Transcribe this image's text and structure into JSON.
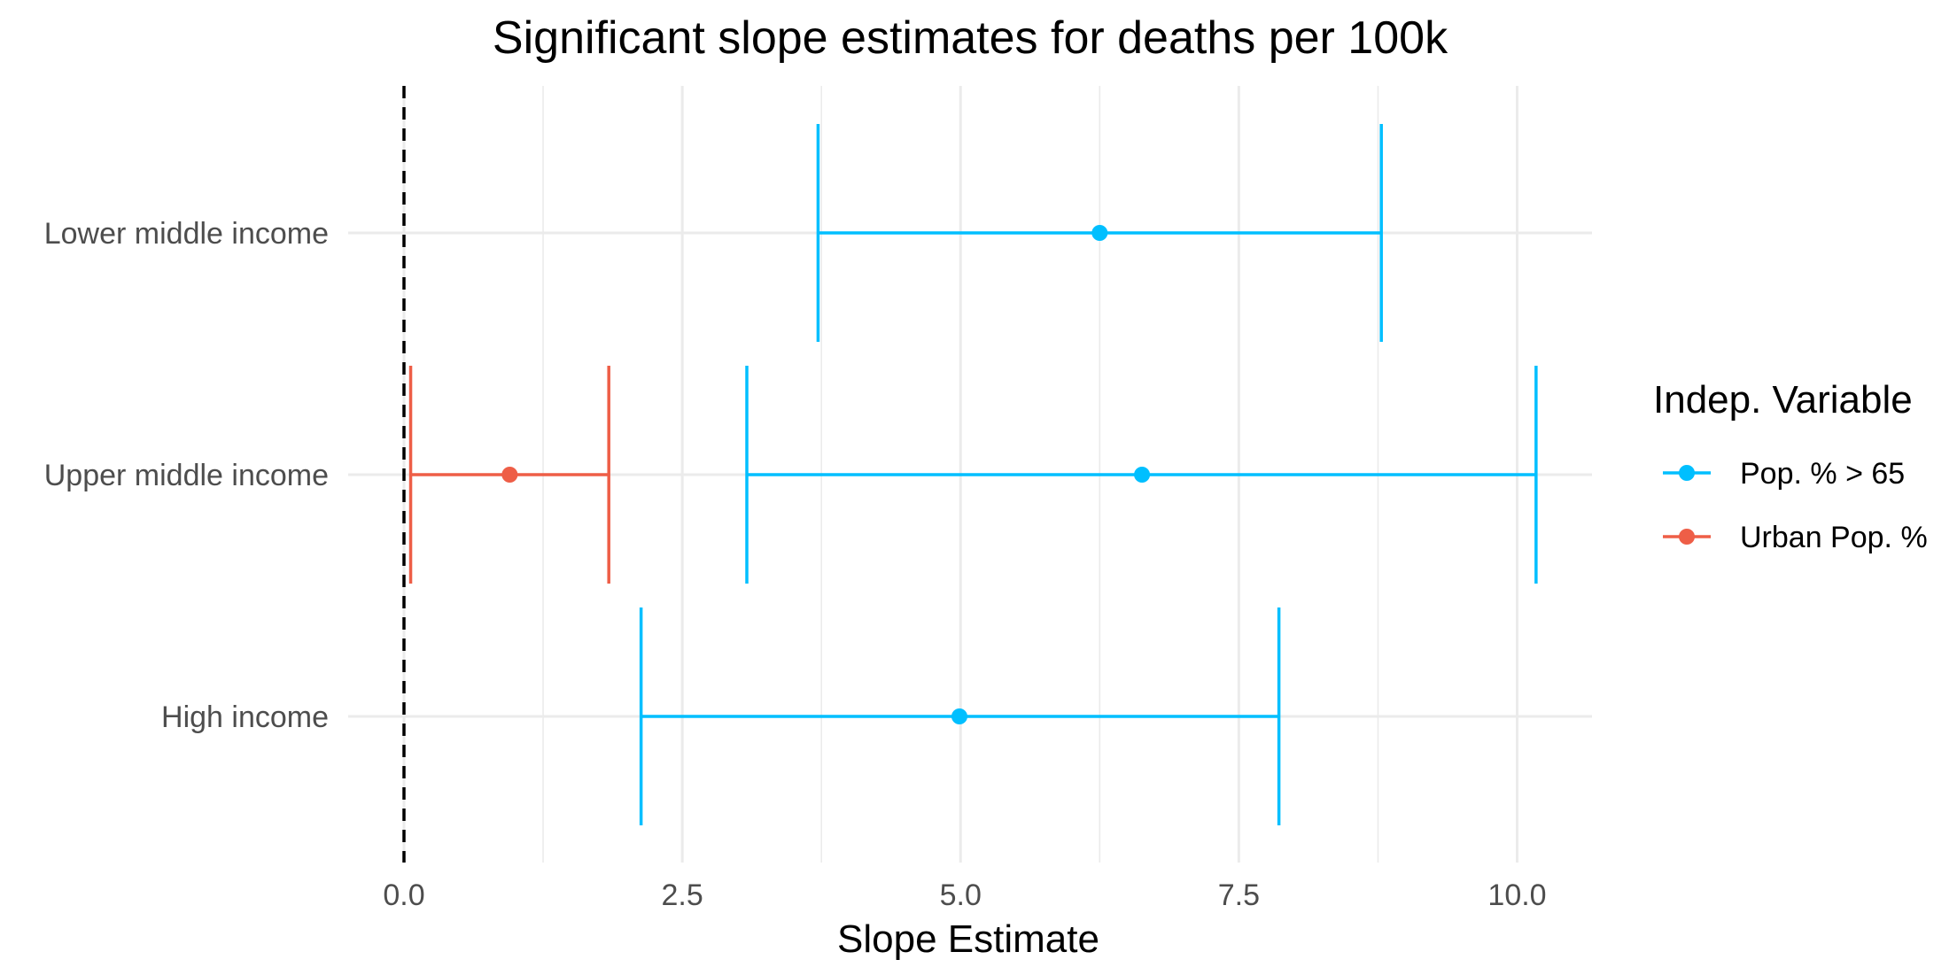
{
  "chart_data": {
    "type": "errorbar",
    "title": "Significant slope estimates for deaths per 100k",
    "xlabel": "Slope Estimate",
    "ylabel": "",
    "xlim": [
      -1.0,
      10.7
    ],
    "x_ticks": [
      0.0,
      2.5,
      5.0,
      7.5,
      10.0
    ],
    "x_tick_labels": [
      "0.0",
      "2.5",
      "5.0",
      "7.5",
      "10.0"
    ],
    "x_minor_ticks": [
      1.25,
      3.75,
      6.25,
      8.75
    ],
    "categories": [
      "Lower middle income",
      "Upper middle income",
      "High income"
    ],
    "reference_line": {
      "x": 0,
      "style": "dashed",
      "color": "#000000"
    },
    "grid": true,
    "legend": {
      "title": "Indep. Variable",
      "placement": "right"
    },
    "series": [
      {
        "name": "Pop. % > 65",
        "color": "#00BFFF",
        "points": [
          {
            "category": "Lower middle income",
            "estimate": 6.25,
            "lower": 3.72,
            "upper": 8.78
          },
          {
            "category": "Upper middle income",
            "estimate": 6.63,
            "lower": 3.08,
            "upper": 10.17
          },
          {
            "category": "High income",
            "estimate": 4.99,
            "lower": 2.13,
            "upper": 7.86
          }
        ]
      },
      {
        "name": "Urban Pop. %",
        "color": "#EE5E47",
        "points": [
          {
            "category": "Upper middle income",
            "estimate": 0.95,
            "lower": 0.06,
            "upper": 1.84
          }
        ]
      }
    ]
  }
}
